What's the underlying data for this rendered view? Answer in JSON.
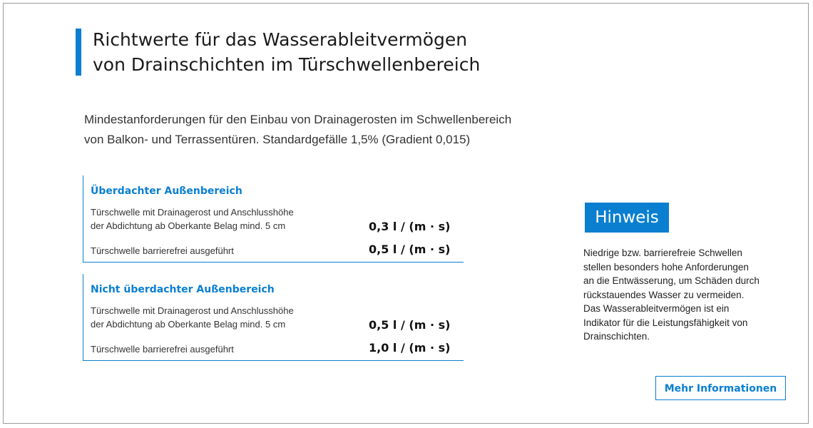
{
  "header": {
    "title_line1": "Richtwerte für das Wasserableitvermögen",
    "title_line2": "von Drainschichten im Türschwellenbereich"
  },
  "intro": {
    "line1": "Mindestanforderungen für den Einbau von Drainagerosten im Schwellenbereich",
    "line2": "von Balkon- und Terrassentüren. Standardgefälle 1,5% (Gradient 0,015)"
  },
  "sections": [
    {
      "heading": "Überdachter Außenbereich",
      "rows": [
        {
          "label_line1": "Türschwelle mit Drainagerost und Anschlusshöhe",
          "label_line2": "der Abdichtung ab Oberkante Belag mind. 5 cm",
          "value": "0,3 l / (m · s)"
        },
        {
          "label_line1": "Türschwelle barrierefrei ausgeführt",
          "value": "0,5 l / (m · s)"
        }
      ]
    },
    {
      "heading": "Nicht überdachter Außenbereich",
      "rows": [
        {
          "label_line1": "Türschwelle mit Drainagerost und Anschlusshöhe",
          "label_line2": "der Abdichtung ab Oberkante Belag mind. 5 cm",
          "value": "0,5 l / (m · s)"
        },
        {
          "label_line1": "Türschwelle barrierefrei ausgeführt",
          "value": "1,0 l / (m · s)"
        }
      ]
    }
  ],
  "note": {
    "badge": "Hinweis",
    "lines": [
      "Niedrige bzw. barrierefreie Schwellen",
      "stellen besonders hohe Anforderungen",
      "an die Entwässerung, um Schäden durch",
      "rückstauendes Wasser zu vermeiden.",
      "Das Wasserableitvermögen ist ein",
      "Indikator für die Leistungsfähigkeit von",
      "Drainschichten."
    ]
  },
  "actions": {
    "more_label": "Mehr Informationen"
  },
  "colors": {
    "accent": "#0a7fd0",
    "text": "#1a1a1a"
  }
}
